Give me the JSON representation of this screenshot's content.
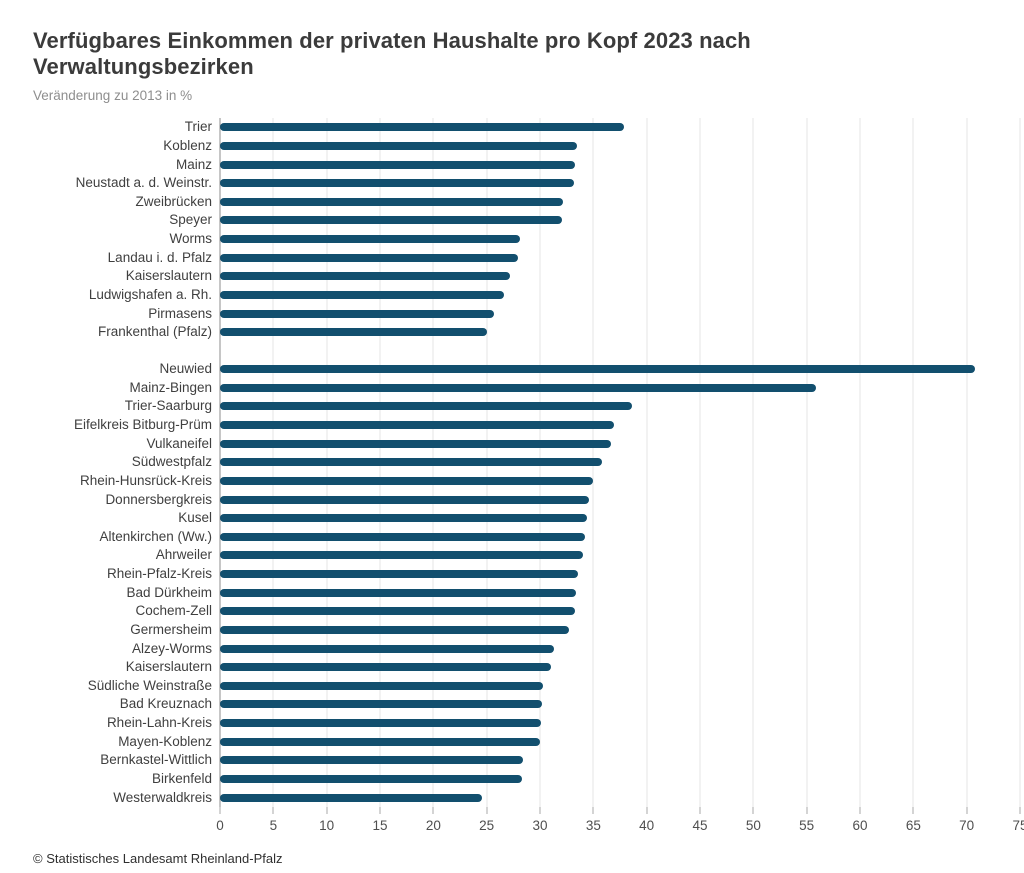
{
  "header": {
    "title": "Verfügbares Einkommen der privaten Haushalte pro Kopf 2023 nach Verwaltungsbezirken",
    "subtitle": "Veränderung zu 2013 in %"
  },
  "footer": {
    "copyright": "© Statistisches Landesamt Rheinland-Pfalz"
  },
  "chart_data": {
    "type": "bar",
    "orientation": "horizontal",
    "title": "Verfügbares Einkommen der privaten Haushalte pro Kopf 2023 nach Verwaltungsbezirken",
    "subtitle": "Veränderung zu 2013 in %",
    "xlabel": "",
    "ylabel": "",
    "xlim": [
      0,
      75
    ],
    "x_ticks": [
      0,
      5,
      10,
      15,
      20,
      25,
      30,
      35,
      40,
      45,
      50,
      55,
      60,
      65,
      70,
      75
    ],
    "grid": true,
    "legend": "none",
    "unit": "%",
    "groups": [
      {
        "items": [
          {
            "label": "Trier",
            "value": 37.9
          },
          {
            "label": "Koblenz",
            "value": 33.5
          },
          {
            "label": "Mainz",
            "value": 33.3
          },
          {
            "label": "Neustadt a. d. Weinstr.",
            "value": 33.2
          },
          {
            "label": "Zweibrücken",
            "value": 32.2
          },
          {
            "label": "Speyer",
            "value": 32.1
          },
          {
            "label": "Worms",
            "value": 28.1
          },
          {
            "label": "Landau i. d. Pfalz",
            "value": 27.9
          },
          {
            "label": "Kaiserslautern",
            "value": 27.2
          },
          {
            "label": "Ludwigshafen a. Rh.",
            "value": 26.6
          },
          {
            "label": "Pirmasens",
            "value": 25.7
          },
          {
            "label": "Frankenthal (Pfalz)",
            "value": 25.0
          }
        ]
      },
      {
        "items": [
          {
            "label": "Neuwied",
            "value": 70.8
          },
          {
            "label": "Mainz-Bingen",
            "value": 55.9
          },
          {
            "label": "Trier-Saarburg",
            "value": 38.6
          },
          {
            "label": "Eifelkreis Bitburg-Prüm",
            "value": 36.9
          },
          {
            "label": "Vulkaneifel",
            "value": 36.7
          },
          {
            "label": "Südwestpfalz",
            "value": 35.8
          },
          {
            "label": "Rhein-Hunsrück-Kreis",
            "value": 35.0
          },
          {
            "label": "Donnersbergkreis",
            "value": 34.6
          },
          {
            "label": "Kusel",
            "value": 34.4
          },
          {
            "label": "Altenkirchen (Ww.)",
            "value": 34.2
          },
          {
            "label": "Ahrweiler",
            "value": 34.0
          },
          {
            "label": "Rhein-Pfalz-Kreis",
            "value": 33.6
          },
          {
            "label": "Bad Dürkheim",
            "value": 33.4
          },
          {
            "label": "Cochem-Zell",
            "value": 33.3
          },
          {
            "label": "Germersheim",
            "value": 32.7
          },
          {
            "label": "Alzey-Worms",
            "value": 31.3
          },
          {
            "label": "Kaiserslautern",
            "value": 31.0
          },
          {
            "label": "Südliche Weinstraße",
            "value": 30.3
          },
          {
            "label": "Bad Kreuznach",
            "value": 30.2
          },
          {
            "label": "Rhein-Lahn-Kreis",
            "value": 30.1
          },
          {
            "label": "Mayen-Koblenz",
            "value": 30.0
          },
          {
            "label": "Bernkastel-Wittlich",
            "value": 28.4
          },
          {
            "label": "Birkenfeld",
            "value": 28.3
          },
          {
            "label": "Westerwaldkreis",
            "value": 24.6
          }
        ]
      }
    ],
    "colors": {
      "bar": "#124f6e",
      "grid": "#e4e4e4",
      "axis": "#8c8c8c",
      "tick": "#a8a8a8",
      "title_text": "#3b3b3b",
      "subtitle_text": "#8e8e8e",
      "label_text": "#3f3f3f",
      "tick_text": "#4f4f4f",
      "footer_text": "#2f2f2f",
      "background": "#ffffff"
    }
  }
}
